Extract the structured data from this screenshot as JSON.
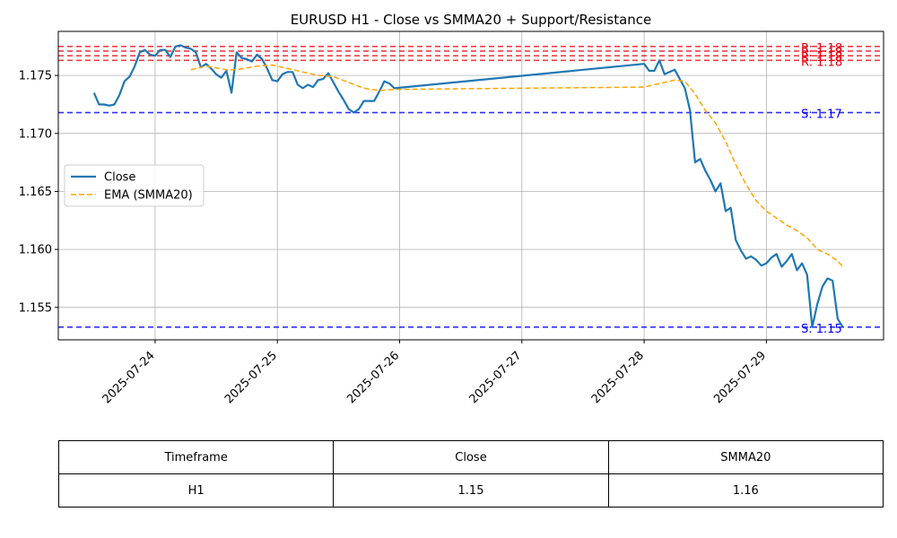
{
  "chart_data": {
    "type": "line",
    "title": "EURUSD H1 - Close vs SMMA20 + Support/Resistance",
    "xlabel": "",
    "ylabel": "",
    "ylim": [
      1.1522,
      1.1788
    ],
    "xlim": [
      "2025-07-23T05:00",
      "2025-07-29T23:00"
    ],
    "grid": true,
    "legend_position": "center-left",
    "x_tick_labels": [
      "2025-07-24",
      "2025-07-25",
      "2025-07-26",
      "2025-07-27",
      "2025-07-28",
      "2025-07-29"
    ],
    "y_tick_labels": [
      "1.155",
      "1.160",
      "1.165",
      "1.170",
      "1.175"
    ],
    "series": [
      {
        "name": "Close",
        "color": "#1f77b4",
        "style": "solid",
        "points": [
          [
            "2025-07-23T12:00",
            1.1735
          ],
          [
            "2025-07-23T13:00",
            1.1725
          ],
          [
            "2025-07-23T14:00",
            1.1725
          ],
          [
            "2025-07-23T15:00",
            1.1724
          ],
          [
            "2025-07-23T16:00",
            1.1725
          ],
          [
            "2025-07-23T17:00",
            1.1733
          ],
          [
            "2025-07-23T18:00",
            1.1745
          ],
          [
            "2025-07-23T19:00",
            1.1749
          ],
          [
            "2025-07-23T20:00",
            1.1758
          ],
          [
            "2025-07-23T21:00",
            1.177
          ],
          [
            "2025-07-23T22:00",
            1.1772
          ],
          [
            "2025-07-23T23:00",
            1.1768
          ],
          [
            "2025-07-24T00:00",
            1.1767
          ],
          [
            "2025-07-24T01:00",
            1.1772
          ],
          [
            "2025-07-24T02:00",
            1.1772
          ],
          [
            "2025-07-24T03:00",
            1.1766
          ],
          [
            "2025-07-24T04:00",
            1.1775
          ],
          [
            "2025-07-24T05:00",
            1.1776
          ],
          [
            "2025-07-24T06:00",
            1.1774
          ],
          [
            "2025-07-24T07:00",
            1.1773
          ],
          [
            "2025-07-24T08:00",
            1.177
          ],
          [
            "2025-07-24T09:00",
            1.1757
          ],
          [
            "2025-07-24T10:00",
            1.176
          ],
          [
            "2025-07-24T11:00",
            1.1756
          ],
          [
            "2025-07-24T12:00",
            1.1751
          ],
          [
            "2025-07-24T13:00",
            1.1748
          ],
          [
            "2025-07-24T14:00",
            1.1754
          ],
          [
            "2025-07-24T15:00",
            1.1735
          ],
          [
            "2025-07-24T16:00",
            1.177
          ],
          [
            "2025-07-24T17:00",
            1.1765
          ],
          [
            "2025-07-24T18:00",
            1.1764
          ],
          [
            "2025-07-24T19:00",
            1.1762
          ],
          [
            "2025-07-24T20:00",
            1.1768
          ],
          [
            "2025-07-24T21:00",
            1.1764
          ],
          [
            "2025-07-24T22:00",
            1.1756
          ],
          [
            "2025-07-24T23:00",
            1.1746
          ],
          [
            "2025-07-25T00:00",
            1.1745
          ],
          [
            "2025-07-25T01:00",
            1.1751
          ],
          [
            "2025-07-25T02:00",
            1.1753
          ],
          [
            "2025-07-25T03:00",
            1.1753
          ],
          [
            "2025-07-25T04:00",
            1.1742
          ],
          [
            "2025-07-25T05:00",
            1.1739
          ],
          [
            "2025-07-25T06:00",
            1.1742
          ],
          [
            "2025-07-25T07:00",
            1.174
          ],
          [
            "2025-07-25T08:00",
            1.1746
          ],
          [
            "2025-07-25T09:00",
            1.1747
          ],
          [
            "2025-07-25T10:00",
            1.1752
          ],
          [
            "2025-07-25T11:00",
            1.1744
          ],
          [
            "2025-07-25T12:00",
            1.1736
          ],
          [
            "2025-07-25T13:00",
            1.1729
          ],
          [
            "2025-07-25T14:00",
            1.1721
          ],
          [
            "2025-07-25T15:00",
            1.1718
          ],
          [
            "2025-07-25T16:00",
            1.1721
          ],
          [
            "2025-07-25T17:00",
            1.1728
          ],
          [
            "2025-07-25T18:00",
            1.1728
          ],
          [
            "2025-07-25T19:00",
            1.1728
          ],
          [
            "2025-07-25T20:00",
            1.1736
          ],
          [
            "2025-07-25T21:00",
            1.1745
          ],
          [
            "2025-07-25T22:00",
            1.1743
          ],
          [
            "2025-07-25T23:00",
            1.1739
          ],
          [
            "2025-07-28T00:00",
            1.176
          ],
          [
            "2025-07-28T01:00",
            1.1754
          ],
          [
            "2025-07-28T02:00",
            1.1754
          ],
          [
            "2025-07-28T03:00",
            1.1763
          ],
          [
            "2025-07-28T04:00",
            1.1751
          ],
          [
            "2025-07-28T05:00",
            1.1753
          ],
          [
            "2025-07-28T06:00",
            1.1755
          ],
          [
            "2025-07-28T07:00",
            1.1747
          ],
          [
            "2025-07-28T08:00",
            1.1739
          ],
          [
            "2025-07-28T09:00",
            1.172
          ],
          [
            "2025-07-28T10:00",
            1.1675
          ],
          [
            "2025-07-28T11:00",
            1.1678
          ],
          [
            "2025-07-28T12:00",
            1.1668
          ],
          [
            "2025-07-28T13:00",
            1.166
          ],
          [
            "2025-07-28T14:00",
            1.165
          ],
          [
            "2025-07-28T15:00",
            1.1657
          ],
          [
            "2025-07-28T16:00",
            1.1633
          ],
          [
            "2025-07-28T17:00",
            1.1636
          ],
          [
            "2025-07-28T18:00",
            1.1608
          ],
          [
            "2025-07-28T19:00",
            1.1599
          ],
          [
            "2025-07-28T20:00",
            1.1592
          ],
          [
            "2025-07-28T21:00",
            1.1594
          ],
          [
            "2025-07-28T22:00",
            1.1591
          ],
          [
            "2025-07-28T23:00",
            1.1586
          ],
          [
            "2025-07-29T00:00",
            1.1588
          ],
          [
            "2025-07-29T01:00",
            1.1593
          ],
          [
            "2025-07-29T02:00",
            1.1596
          ],
          [
            "2025-07-29T03:00",
            1.1585
          ],
          [
            "2025-07-29T04:00",
            1.159
          ],
          [
            "2025-07-29T05:00",
            1.1596
          ],
          [
            "2025-07-29T06:00",
            1.1582
          ],
          [
            "2025-07-29T07:00",
            1.1588
          ],
          [
            "2025-07-29T08:00",
            1.1578
          ],
          [
            "2025-07-29T09:00",
            1.1533
          ],
          [
            "2025-07-29T10:00",
            1.1553
          ],
          [
            "2025-07-29T11:00",
            1.1568
          ],
          [
            "2025-07-29T12:00",
            1.1575
          ],
          [
            "2025-07-29T13:00",
            1.1573
          ],
          [
            "2025-07-29T14:00",
            1.154
          ],
          [
            "2025-07-29T15:00",
            1.1533
          ]
        ]
      },
      {
        "name": "EMA (SMMA20)",
        "color": "#ffa500",
        "style": "dashed",
        "points": [
          [
            "2025-07-24T07:00",
            1.1755
          ],
          [
            "2025-07-24T10:00",
            1.1758
          ],
          [
            "2025-07-24T14:00",
            1.1755
          ],
          [
            "2025-07-24T16:00",
            1.1755
          ],
          [
            "2025-07-24T20:00",
            1.1758
          ],
          [
            "2025-07-24T23:00",
            1.1759
          ],
          [
            "2025-07-25T02:00",
            1.1756
          ],
          [
            "2025-07-25T05:00",
            1.1753
          ],
          [
            "2025-07-25T08:00",
            1.175
          ],
          [
            "2025-07-25T11:00",
            1.1749
          ],
          [
            "2025-07-25T14:00",
            1.1744
          ],
          [
            "2025-07-25T17:00",
            1.1739
          ],
          [
            "2025-07-25T20:00",
            1.1737
          ],
          [
            "2025-07-25T23:00",
            1.1738
          ],
          [
            "2025-07-28T00:00",
            1.174
          ],
          [
            "2025-07-28T03:00",
            1.1743
          ],
          [
            "2025-07-28T06:00",
            1.1746
          ],
          [
            "2025-07-28T08:00",
            1.1745
          ],
          [
            "2025-07-28T10:00",
            1.1734
          ],
          [
            "2025-07-28T12:00",
            1.172
          ],
          [
            "2025-07-28T14:00",
            1.1709
          ],
          [
            "2025-07-28T16:00",
            1.1693
          ],
          [
            "2025-07-28T18:00",
            1.1673
          ],
          [
            "2025-07-28T20:00",
            1.1656
          ],
          [
            "2025-07-28T22:00",
            1.1642
          ],
          [
            "2025-07-29T00:00",
            1.1633
          ],
          [
            "2025-07-29T02:00",
            1.1627
          ],
          [
            "2025-07-29T04:00",
            1.1621
          ],
          [
            "2025-07-29T06:00",
            1.1616
          ],
          [
            "2025-07-29T08:00",
            1.161
          ],
          [
            "2025-07-29T10:00",
            1.16
          ],
          [
            "2025-07-29T12:00",
            1.1596
          ],
          [
            "2025-07-29T13:00",
            1.1593
          ],
          [
            "2025-07-29T14:00",
            1.159
          ],
          [
            "2025-07-29T15:00",
            1.1585
          ]
        ]
      }
    ],
    "levels": [
      {
        "kind": "resistance",
        "value": 1.1775,
        "label": "R: 1.18",
        "color": "#e8000b"
      },
      {
        "kind": "resistance",
        "value": 1.1771,
        "label": "R: 1.18",
        "color": "#e8000b"
      },
      {
        "kind": "resistance",
        "value": 1.1767,
        "label": "R: 1.18",
        "color": "#e8000b"
      },
      {
        "kind": "resistance",
        "value": 1.1763,
        "label": "R: 1.18",
        "color": "#e8000b"
      },
      {
        "kind": "support",
        "value": 1.1718,
        "label": "S: 1.17",
        "color": "#0000ff"
      },
      {
        "kind": "support",
        "value": 1.1533,
        "label": "S: 1.15",
        "color": "#0000ff"
      }
    ]
  },
  "table": {
    "headers": [
      "Timeframe",
      "Close",
      "SMMA20"
    ],
    "rows": [
      [
        "H1",
        "1.15",
        "1.16"
      ]
    ]
  }
}
